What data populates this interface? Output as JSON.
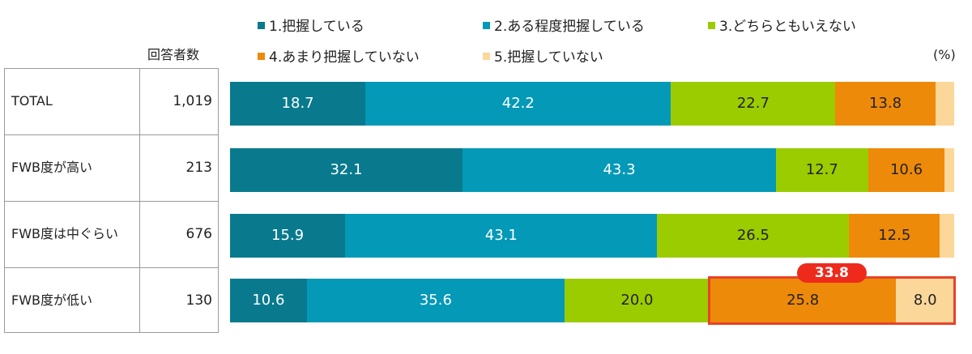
{
  "chart_data": {
    "type": "bar",
    "orientation": "horizontal",
    "stacked": true,
    "unit": "(%)",
    "count_header": "回答者数",
    "categories": [
      "TOTAL",
      "FWB度が高い",
      "FWB度は中ぐらい",
      "FWB度が低い"
    ],
    "counts": [
      "1,019",
      "213",
      "676",
      "130"
    ],
    "series": [
      {
        "name": "1.把握している",
        "color": "#097a8e",
        "values": [
          18.7,
          32.1,
          15.9,
          10.6
        ]
      },
      {
        "name": "2.ある程度把握している",
        "color": "#0399b7",
        "values": [
          42.2,
          43.3,
          43.1,
          35.6
        ]
      },
      {
        "name": "3.どちらともいえない",
        "color": "#9bcc00",
        "values": [
          22.7,
          12.7,
          26.5,
          20.0
        ]
      },
      {
        "name": "4.あまり把握していない",
        "color": "#ee8a0a",
        "values": [
          13.8,
          10.6,
          12.5,
          25.8
        ]
      },
      {
        "name": "5.把握していない",
        "color": "#fcd79a",
        "values": [
          2.6,
          1.3,
          2.0,
          8.0
        ]
      }
    ],
    "value_labels": [
      [
        "18.7",
        "42.2",
        "22.7",
        "13.8",
        ""
      ],
      [
        "32.1",
        "43.3",
        "12.7",
        "10.6",
        ""
      ],
      [
        "15.9",
        "43.1",
        "26.5",
        "12.5",
        ""
      ],
      [
        "10.6",
        "35.6",
        "20.0",
        "25.8",
        "8.0"
      ]
    ],
    "xlim": [
      0,
      100
    ],
    "legend_position": "top",
    "highlight": {
      "row": 3,
      "series": [
        3,
        4
      ],
      "label": "33.8",
      "color": "#ee2a1d"
    }
  }
}
